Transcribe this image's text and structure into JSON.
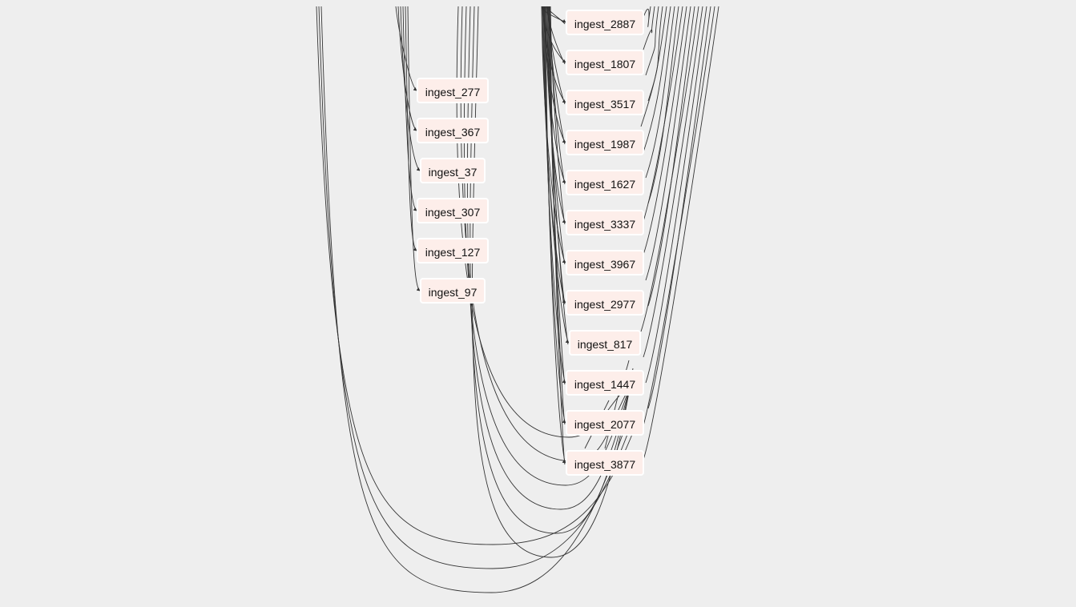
{
  "graph": {
    "background": "#eeeeee",
    "node_fill": "#fdeeea",
    "node_border": "#ffffff",
    "edge_color": "#333333",
    "left_column": [
      {
        "label": "ingest_277"
      },
      {
        "label": "ingest_367"
      },
      {
        "label": "ingest_37"
      },
      {
        "label": "ingest_307"
      },
      {
        "label": "ingest_127"
      },
      {
        "label": "ingest_97"
      }
    ],
    "right_column": [
      {
        "label": "ingest_2887"
      },
      {
        "label": "ingest_1807"
      },
      {
        "label": "ingest_3517"
      },
      {
        "label": "ingest_1987"
      },
      {
        "label": "ingest_1627"
      },
      {
        "label": "ingest_3337"
      },
      {
        "label": "ingest_3967"
      },
      {
        "label": "ingest_2977"
      },
      {
        "label": "ingest_817"
      },
      {
        "label": "ingest_1447"
      },
      {
        "label": "ingest_2077"
      },
      {
        "label": "ingest_3877"
      }
    ]
  }
}
